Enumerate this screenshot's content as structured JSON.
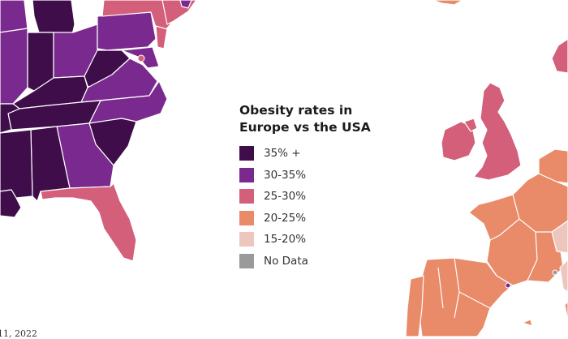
{
  "legend": {
    "title": "Obesity rates in\nEurope vs the USA",
    "items": [
      {
        "label": "35% +",
        "color": "#3f0d4a"
      },
      {
        "label": "30-35%",
        "color": "#7a2a8e"
      },
      {
        "label": "25-30%",
        "color": "#d35f7a"
      },
      {
        "label": "20-25%",
        "color": "#e98a68"
      },
      {
        "label": "15-20%",
        "color": "#edc7bd"
      },
      {
        "label": "No Data",
        "color": "#9a9a9a"
      }
    ]
  },
  "footnote": "11, 2022"
}
